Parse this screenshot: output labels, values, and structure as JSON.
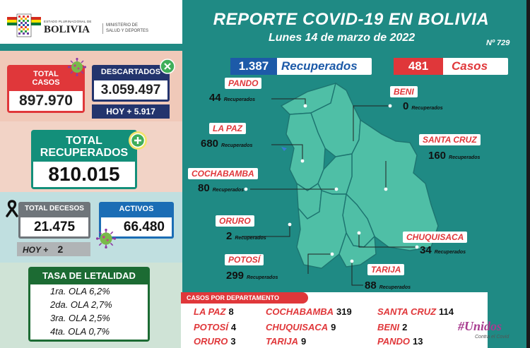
{
  "header": {
    "estado": "ESTADO PLURINACIONAL DE",
    "pais": "BOLIVIA",
    "ministerio": [
      "MINISTERIO DE",
      "SALUD Y DEPORTES"
    ]
  },
  "report": {
    "title": "REPORTE COVID-19 EN BOLIVIA",
    "date": "Lunes 14 de marzo de 2022",
    "number": "Nº 729"
  },
  "summary": {
    "total_casos_label": [
      "TOTAL",
      "CASOS"
    ],
    "total_casos": "897.970",
    "descartados_label": "DESCARTADOS",
    "descartados": "3.059.497",
    "descartados_hoy": "HOY + 5.917",
    "total_recuperados_label": [
      "TOTAL",
      "RECUPERADOS"
    ],
    "total_recuperados": "810.015",
    "decesos_label": "TOTAL DECESOS",
    "decesos": "21.475",
    "decesos_hoy_label": "HOY +",
    "decesos_hoy": "2",
    "activos_label": "ACTIVOS",
    "activos": "66.480"
  },
  "letalidad": {
    "title": "TASA DE LETALIDAD",
    "rows": [
      "1ra. OLA 6,2%",
      "2da. OLA 2,7%",
      "3ra. OLA 2,5%",
      "4ta. OLA 0,7%"
    ]
  },
  "today": {
    "recuperados": "1.387",
    "recuperados_label": "Recuperados",
    "casos": "481",
    "casos_label": "Casos"
  },
  "departments": [
    {
      "name": "PANDO",
      "recuperados": "44"
    },
    {
      "name": "BENI",
      "recuperados": "0"
    },
    {
      "name": "LA PAZ",
      "recuperados": "680"
    },
    {
      "name": "SANTA CRUZ",
      "recuperados": "160"
    },
    {
      "name": "COCHABAMBA",
      "recuperados": "80"
    },
    {
      "name": "ORURO",
      "recuperados": "2"
    },
    {
      "name": "CHUQUISACA",
      "recuperados": "34"
    },
    {
      "name": "POTOSÍ",
      "recuperados": "299"
    },
    {
      "name": "TARIJA",
      "recuperados": "88"
    }
  ],
  "recuperados_word": "Recuperados",
  "casos_departamento": {
    "title": "CASOS POR DEPARTAMENTO",
    "items": [
      {
        "name": "LA PAZ",
        "value": "8"
      },
      {
        "name": "COCHABAMBA",
        "value": "319"
      },
      {
        "name": "SANTA CRUZ",
        "value": "114"
      },
      {
        "name": "POTOSÍ",
        "value": "4"
      },
      {
        "name": "CHUQUISACA",
        "value": "9"
      },
      {
        "name": "BENI",
        "value": "2"
      },
      {
        "name": "ORURO",
        "value": "3"
      },
      {
        "name": "TARIJA",
        "value": "9"
      },
      {
        "name": "PANDO",
        "value": "13"
      }
    ]
  },
  "campaign": {
    "title": "#Unidos",
    "subtitle": "Contra el Covid"
  },
  "colors": {
    "teal": "#1f8a84",
    "red": "#e0373a",
    "navy": "#23346d",
    "green": "#138f7a",
    "blue": "#1d5aa8"
  }
}
